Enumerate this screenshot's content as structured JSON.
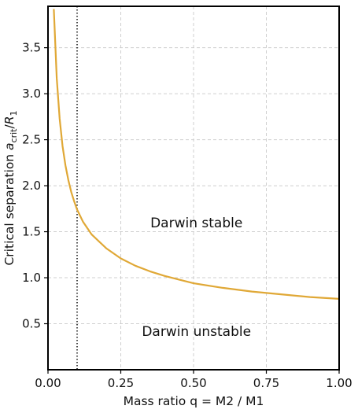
{
  "chart_data": {
    "type": "line",
    "xlabel": "Mass ratio q = M2 / M1",
    "ylabel_main": "Critical separation ",
    "ylabel_a": "a",
    "ylabel_sub": "crit",
    "ylabel_slash": "/",
    "ylabel_r": "R",
    "ylabel_r_sub": "1",
    "xlim": [
      0.0,
      1.0
    ],
    "ylim": [
      0.0,
      3.95
    ],
    "xticks": [
      "0.00",
      "0.25",
      "0.50",
      "0.75",
      "1.00"
    ],
    "xtick_values": [
      0.0,
      0.25,
      0.5,
      0.75,
      1.0
    ],
    "yticks": [
      "0.5",
      "1.0",
      "1.5",
      "2.0",
      "2.5",
      "3.0",
      "3.5"
    ],
    "ytick_values": [
      0.5,
      1.0,
      1.5,
      2.0,
      2.5,
      3.0,
      3.5
    ],
    "grid": true,
    "series": [
      {
        "color": "#e0a836",
        "x": [
          0.02,
          0.03,
          0.04,
          0.05,
          0.06,
          0.07,
          0.08,
          0.09,
          0.1,
          0.12,
          0.15,
          0.2,
          0.25,
          0.3,
          0.35,
          0.4,
          0.45,
          0.5,
          0.6,
          0.7,
          0.8,
          0.9,
          1.0
        ],
        "y": [
          3.92,
          3.17,
          2.73,
          2.43,
          2.22,
          2.06,
          1.93,
          1.83,
          1.74,
          1.61,
          1.47,
          1.32,
          1.21,
          1.13,
          1.07,
          1.02,
          0.98,
          0.94,
          0.89,
          0.85,
          0.82,
          0.79,
          0.77
        ]
      }
    ],
    "vline": {
      "x": 0.1,
      "color": "#000000",
      "style": "dotted"
    },
    "annotations": [
      {
        "text": "Darwin stable",
        "x": 0.51,
        "y": 1.6
      },
      {
        "text": "Darwin unstable",
        "x": 0.51,
        "y": 0.42
      }
    ]
  }
}
